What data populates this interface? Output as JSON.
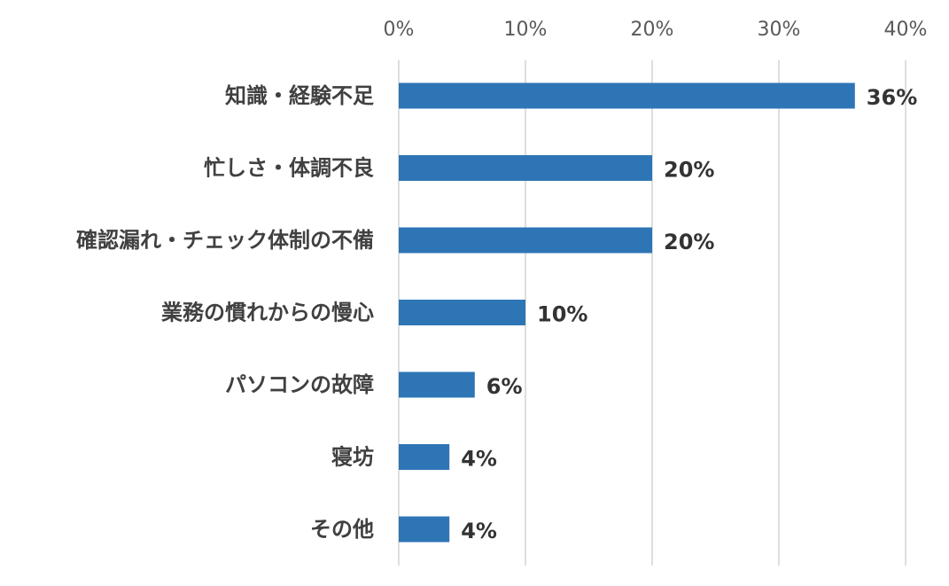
{
  "chart_data": {
    "type": "bar",
    "orientation": "horizontal",
    "categories": [
      "知識・経験不足",
      "忙しさ・体調不良",
      "確認漏れ・チェック体制の不備",
      "業務の慣れからの慢心",
      "パソコンの故障",
      "寝坊",
      "その他"
    ],
    "values": [
      36,
      20,
      20,
      10,
      6,
      4,
      4
    ],
    "data_labels": [
      "36%",
      "20%",
      "20%",
      "10%",
      "6%",
      "4%",
      "4%"
    ],
    "xlim": [
      0,
      40
    ],
    "x_ticks": [
      0,
      10,
      20,
      30,
      40
    ],
    "x_tick_labels": [
      "0%",
      "10%",
      "20%",
      "30%",
      "40%"
    ],
    "x_axis_position": "top",
    "grid": true,
    "title": "",
    "xlabel": "",
    "ylabel": "",
    "colors": {
      "bar": "#2e75b6",
      "grid": "#d4d4d4"
    }
  }
}
